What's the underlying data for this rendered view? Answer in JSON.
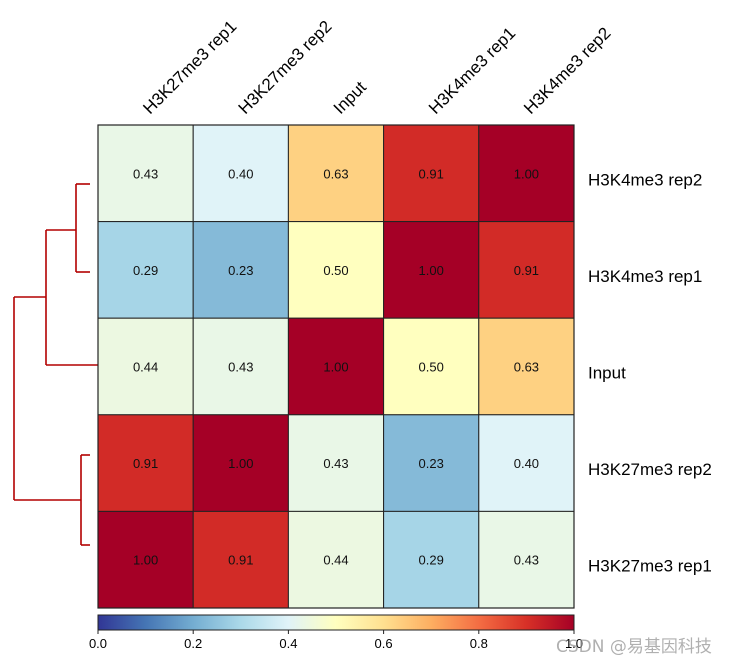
{
  "chart_data": {
    "type": "heatmap",
    "title": "",
    "columns": [
      "H3K27me3 rep1",
      "H3K27me3 rep2",
      "Input",
      "H3K4me3 rep1",
      "H3K4me3 rep2"
    ],
    "rows": [
      "H3K4me3 rep2",
      "H3K4me3 rep1",
      "Input",
      "H3K27me3 rep2",
      "H3K27me3 rep1"
    ],
    "values": [
      [
        0.43,
        0.4,
        0.63,
        0.91,
        1.0
      ],
      [
        0.29,
        0.23,
        0.5,
        1.0,
        0.91
      ],
      [
        0.44,
        0.43,
        1.0,
        0.5,
        0.63
      ],
      [
        0.91,
        1.0,
        0.43,
        0.23,
        0.4
      ],
      [
        1.0,
        0.91,
        0.44,
        0.29,
        0.43
      ]
    ],
    "value_labels": [
      [
        "0.43",
        "0.40",
        "0.63",
        "0.91",
        "1.00"
      ],
      [
        "0.29",
        "0.23",
        "0.50",
        "1.00",
        "0.91"
      ],
      [
        "0.44",
        "0.43",
        "1.00",
        "0.50",
        "0.63"
      ],
      [
        "0.91",
        "1.00",
        "0.43",
        "0.23",
        "0.40"
      ],
      [
        "1.00",
        "0.91",
        "0.44",
        "0.29",
        "0.43"
      ]
    ],
    "colorbar": {
      "range": [
        0.0,
        1.0
      ],
      "ticks": [
        0.0,
        0.2,
        0.4,
        0.6,
        0.8,
        1.0
      ],
      "tick_labels": [
        "0.0",
        "0.2",
        "0.4",
        "0.6",
        "0.8",
        "1.0"
      ],
      "colormap": "RdYlBu_r",
      "colormap_stops": [
        "#313695",
        "#4575b4",
        "#74add1",
        "#abd9e9",
        "#e0f3f8",
        "#ffffbf",
        "#fee090",
        "#fdae61",
        "#f46d43",
        "#d73027",
        "#a50026"
      ]
    },
    "dendrogram": {
      "leaves": [
        "H3K4me3 rep2",
        "H3K4me3 rep1",
        "Input",
        "H3K27me3 rep2",
        "H3K27me3 rep1"
      ],
      "merges": [
        {
          "left": "H3K4me3 rep2",
          "right": "H3K4me3 rep1"
        },
        {
          "left": "H3K4me3 rep2+H3K4me3 rep1",
          "right": "Input"
        },
        {
          "left": "H3K27me3 rep2",
          "right": "H3K27me3 rep1"
        },
        {
          "left": "H3K4me3 group+Input",
          "right": "H3K27me3 group"
        }
      ],
      "color": "#b30000"
    }
  },
  "watermark": "CSDN @易基因科技"
}
